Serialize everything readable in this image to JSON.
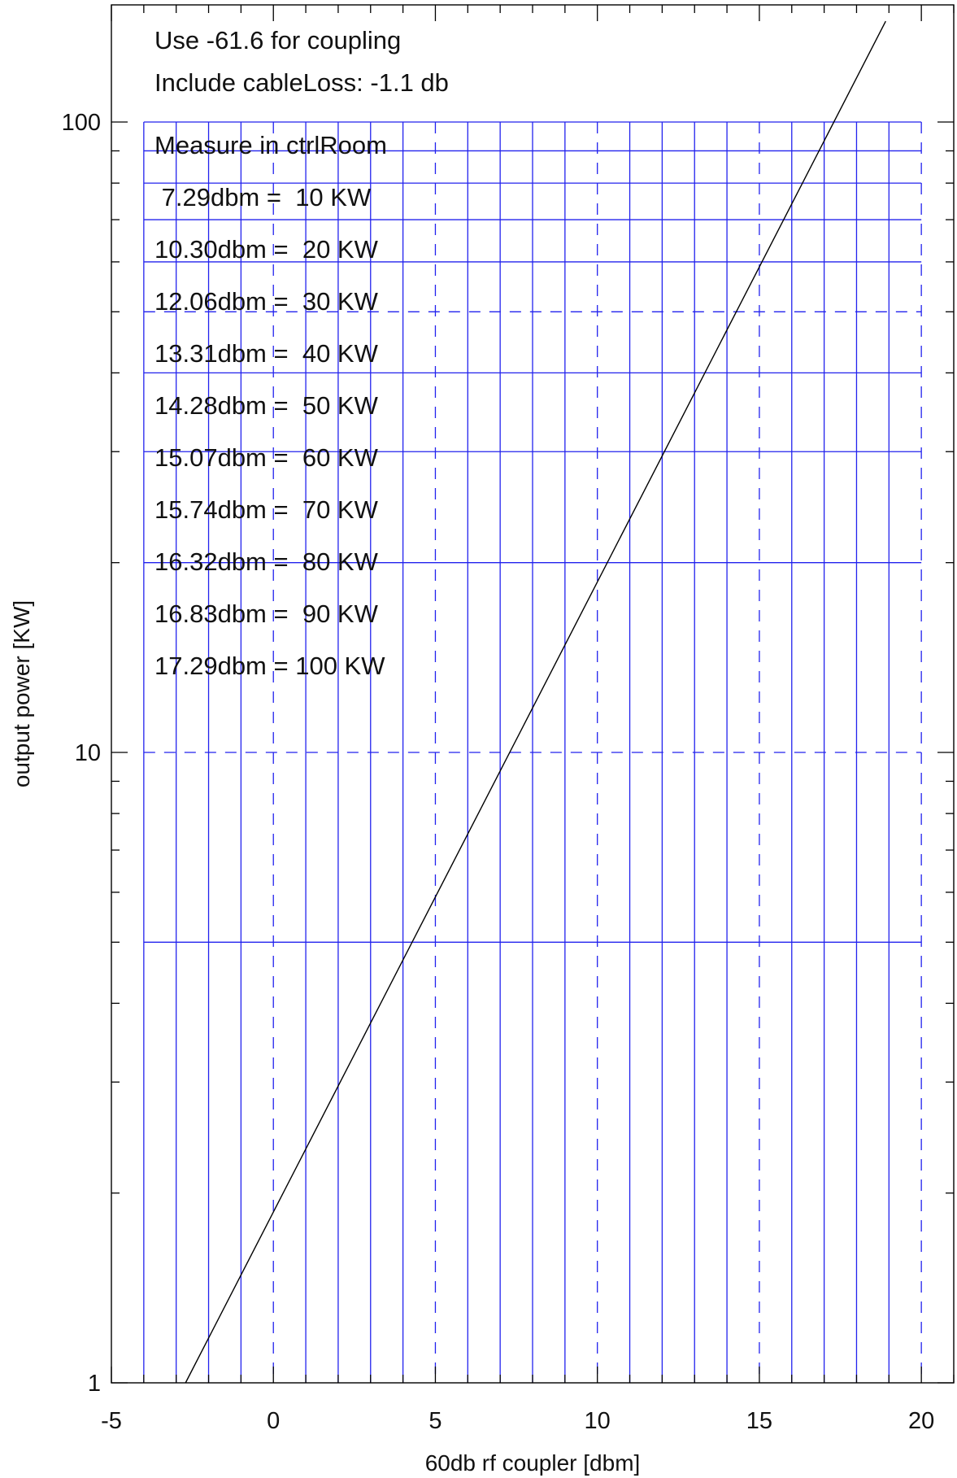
{
  "chart_data": {
    "type": "line",
    "title": "",
    "xlabel": "60db rf coupler [dbm]",
    "ylabel": "output power [KW]",
    "xlim": [
      -5,
      21
    ],
    "ylim": [
      1,
      150
    ],
    "y_scale": "log",
    "x_ticks": [
      -5,
      0,
      5,
      10,
      15,
      20
    ],
    "x_tick_labels": [
      "-5",
      "0",
      "5",
      "10",
      "15",
      "20"
    ],
    "y_ticks": [
      1,
      10,
      100
    ],
    "y_tick_labels": [
      "1",
      "10",
      "100"
    ],
    "grid": true,
    "grid_color": "#2222ee",
    "line_color": "#000000",
    "grid_x": [
      -4,
      -3,
      -2,
      -1,
      0,
      1,
      2,
      3,
      4,
      5,
      6,
      7,
      8,
      9,
      10,
      11,
      12,
      13,
      14,
      15,
      16,
      17,
      18,
      19,
      20
    ],
    "grid_x_dashed": [
      0,
      5,
      10,
      15,
      20
    ],
    "grid_y": [
      5,
      10,
      20,
      30,
      40,
      50,
      60,
      70,
      80,
      90,
      100
    ],
    "grid_y_dashed": [
      10,
      50
    ],
    "series": [
      {
        "name": "",
        "x": [
          -2.71,
          18.9
        ],
        "y": [
          1.0,
          144.5
        ]
      }
    ],
    "annotations": [
      "Use -61.6 for coupling",
      "Include cableLoss: -1.1 db",
      "Measure in ctrlRoom",
      " 7.29dbm =  10 KW",
      "10.30dbm =  20 KW",
      "12.06dbm =  30 KW",
      "13.31dbm =  40 KW",
      "14.28dbm =  50 KW",
      "15.07dbm =  60 KW",
      "15.74dbm =  70 KW",
      "16.32dbm =  80 KW",
      "16.83dbm =  90 KW",
      "17.29dbm = 100 KW"
    ]
  }
}
